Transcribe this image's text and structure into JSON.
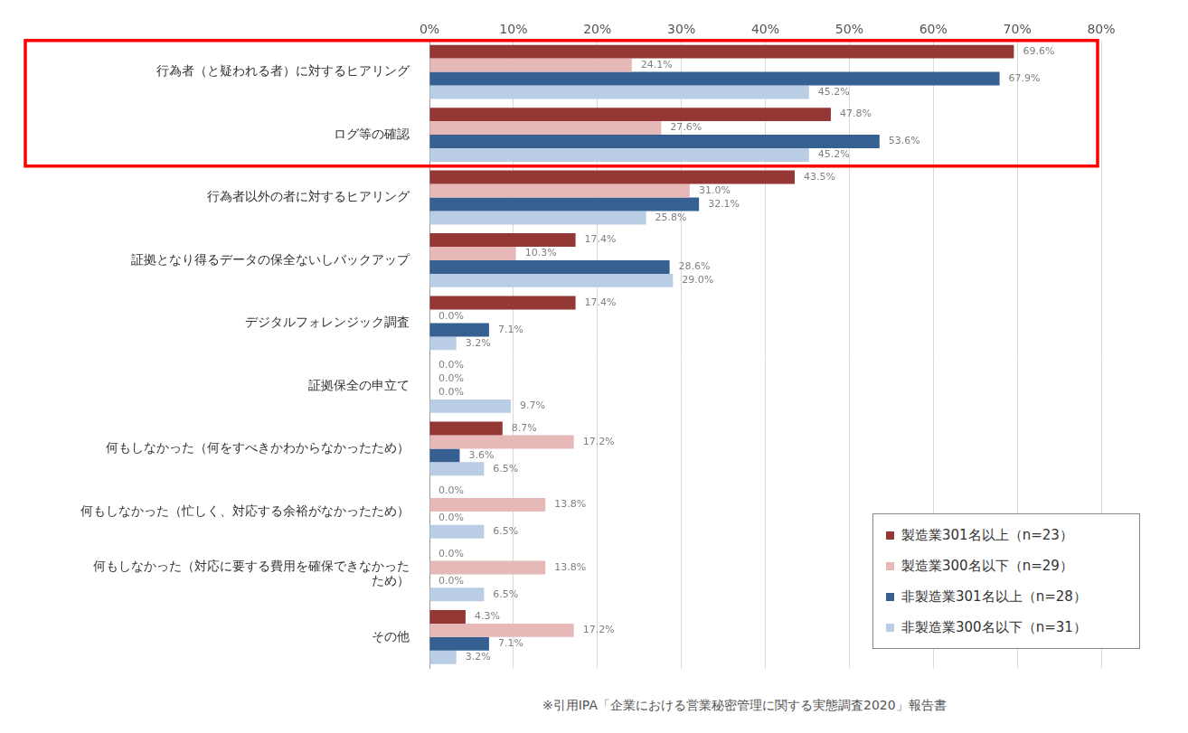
{
  "chart_data": {
    "type": "bar",
    "orientation": "horizontal",
    "categories": [
      "行為者（と疑われる者）に対するヒアリング",
      "ログ等の確認",
      "行為者以外の者に対するヒアリング",
      "証拠となり得るデータの保全ないしバックアップ",
      "デジタルフォレンジック調査",
      "証拠保全の申立て",
      "何もしなかった（何をすべきかわからなかったため）",
      "何もしなかった（忙しく、対応する余裕がなかったため）",
      [
        "何もしなかった（対応に要する費用を確保できなかった",
        "ため）"
      ],
      "その他"
    ],
    "series": [
      {
        "name": "製造業301名以上（n=23）",
        "color": "#953735",
        "values": [
          69.6,
          47.8,
          43.5,
          17.4,
          17.4,
          0.0,
          8.7,
          0.0,
          0.0,
          4.3
        ],
        "value_labels": [
          "69.6%",
          "47.8%",
          "43.5%",
          "17.4%",
          "17.4%",
          "0.0%",
          "8.7%",
          "0.0%",
          "0.0%",
          "4.3%"
        ]
      },
      {
        "name": "製造業300名以下（n=29）",
        "color": "#e6b9b8",
        "values": [
          24.1,
          27.6,
          31.0,
          10.3,
          0.0,
          0.0,
          17.2,
          13.8,
          13.8,
          17.2
        ],
        "value_labels": [
          "24.1%",
          "27.6%",
          "31.0%",
          "10.3%",
          "0.0%",
          "0.0%",
          "17.2%",
          "13.8%",
          "13.8%",
          "17.2%"
        ]
      },
      {
        "name": "非製造業301名以上（n=28）",
        "color": "#376092",
        "values": [
          67.9,
          53.6,
          32.1,
          28.6,
          7.1,
          0.0,
          3.6,
          0.0,
          0.0,
          7.1
        ],
        "value_labels": [
          "67.9%",
          "53.6%",
          "32.1%",
          "28.6%",
          "7.1%",
          "0.0%",
          "3.6%",
          "0.0%",
          "0.0%",
          "7.1%"
        ]
      },
      {
        "name": "非製造業300名以下（n=31）",
        "color": "#b9cde5",
        "values": [
          45.2,
          45.2,
          25.8,
          29.0,
          3.2,
          9.7,
          6.5,
          6.5,
          6.5,
          3.2
        ],
        "value_labels": [
          "45.2%",
          "45.2%",
          "25.8%",
          "29.0%",
          "3.2%",
          "9.7%",
          "6.5%",
          "6.5%",
          "6.5%",
          "3.2%"
        ]
      }
    ],
    "xlim": [
      0,
      80
    ],
    "xticks": [
      {
        "value": 0,
        "label": "0%"
      },
      {
        "value": 10,
        "label": "10%"
      },
      {
        "value": 20,
        "label": "20%"
      },
      {
        "value": 30,
        "label": "30%"
      },
      {
        "value": 40,
        "label": "40%"
      },
      {
        "value": 50,
        "label": "50%"
      },
      {
        "value": 60,
        "label": "60%"
      },
      {
        "value": 70,
        "label": "70%"
      },
      {
        "value": 80,
        "label": "80%"
      }
    ],
    "grid": true,
    "legend": "lower right",
    "data_labels": true,
    "annotations": [
      "※引用IPA「企業における営業秘密管理に関する実態調査2020」報告書"
    ]
  }
}
